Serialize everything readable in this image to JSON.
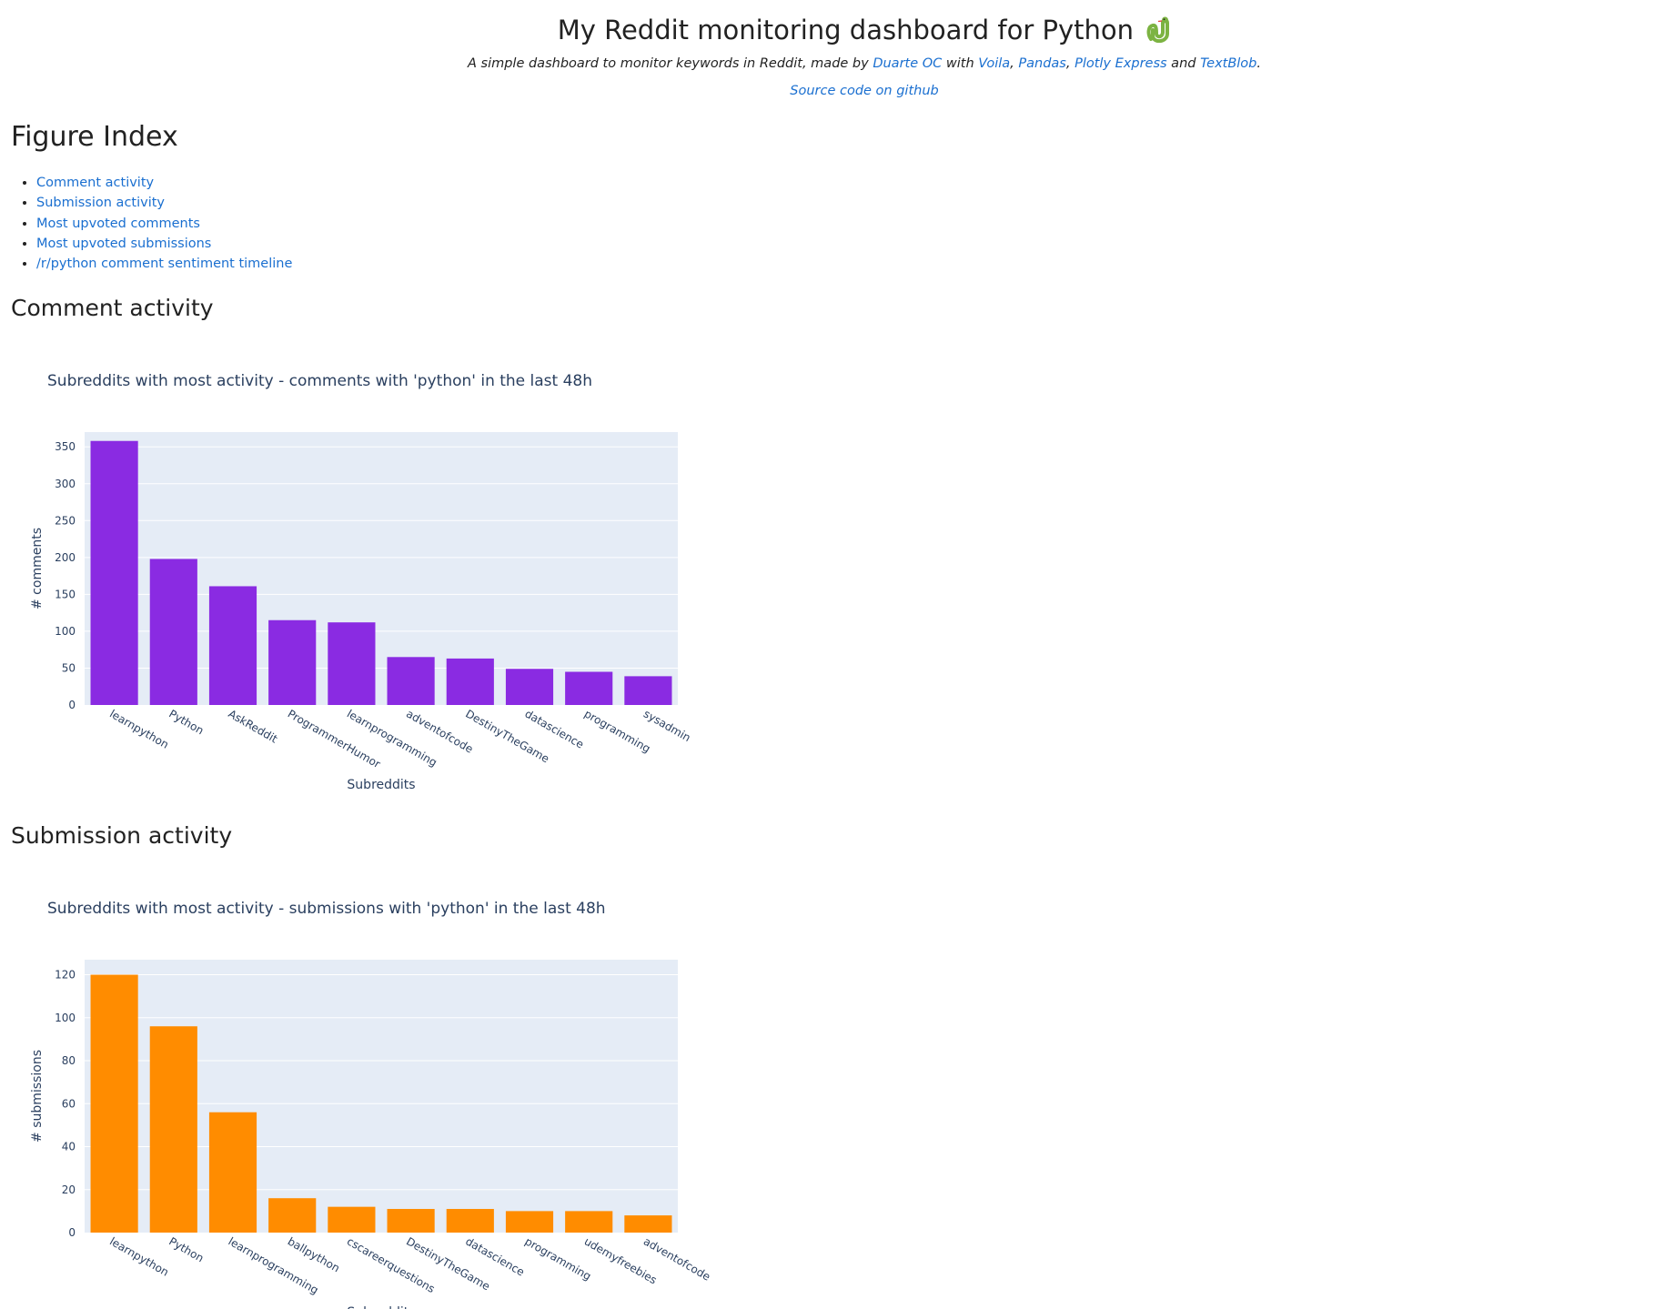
{
  "header": {
    "title": "My Reddit monitoring dashboard for Python",
    "subtitle_parts": {
      "intro": "A simple dashboard to monitor keywords in Reddit, made by ",
      "author": "Duarte OC",
      "with": " with ",
      "lib1": "Voila",
      "sep1": ", ",
      "lib2": "Pandas",
      "sep2": ", ",
      "lib3": "Plotly Express",
      "and": " and ",
      "lib4": "TextBlob",
      "end": "."
    },
    "source_link": "Source code on github"
  },
  "index": {
    "heading": "Figure Index",
    "items": [
      "Comment activity",
      "Submission activity",
      "Most upvoted comments",
      "Most upvoted submissions",
      "/r/python comment sentiment timeline"
    ]
  },
  "sections": {
    "comments_heading": "Comment activity",
    "submissions_heading": "Submission activity"
  },
  "colors": {
    "comments_bar": "#8a2be2",
    "submissions_bar": "#ff8c00",
    "plot_bg": "#e5ecf6",
    "link": "#1a6fd0"
  },
  "chart_data": [
    {
      "type": "bar",
      "title": "Subreddits with most activity - comments with 'python' in the last 48h",
      "xlabel": "Subreddits",
      "ylabel": "# comments",
      "categories": [
        "learnpython",
        "Python",
        "AskReddit",
        "ProgrammerHumor",
        "learnprogramming",
        "adventofcode",
        "DestinyTheGame",
        "datascience",
        "programming",
        "sysadmin"
      ],
      "values": [
        358,
        198,
        161,
        115,
        112,
        65,
        63,
        49,
        45,
        39
      ],
      "ylim": [
        0,
        370
      ],
      "yticks": [
        0,
        50,
        100,
        150,
        200,
        250,
        300,
        350
      ],
      "grid": true,
      "color": "#8a2be2"
    },
    {
      "type": "bar",
      "title": "Subreddits with most activity - submissions with 'python' in the last 48h",
      "xlabel": "Subreddits",
      "ylabel": "# submissions",
      "categories": [
        "learnpython",
        "Python",
        "learnprogramming",
        "ballpython",
        "cscareerquestions",
        "DestinyTheGame",
        "datascience",
        "programming",
        "udemyfreebies",
        "adventofcode"
      ],
      "values": [
        120,
        96,
        56,
        16,
        12,
        11,
        11,
        10,
        10,
        8
      ],
      "ylim": [
        0,
        127
      ],
      "yticks": [
        0,
        20,
        40,
        60,
        80,
        100,
        120
      ],
      "grid": true,
      "color": "#ff8c00"
    }
  ]
}
